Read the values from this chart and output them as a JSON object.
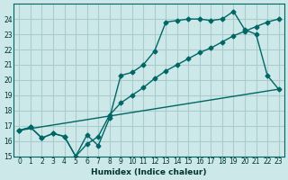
{
  "xlabel": "Humidex (Indice chaleur)",
  "ylabel": "",
  "bg_color": "#cce8e8",
  "grid_color": "#aacccc",
  "line_color": "#006666",
  "xlim": [
    -0.5,
    23.5
  ],
  "ylim": [
    15,
    25
  ],
  "yticks": [
    15,
    16,
    17,
    18,
    19,
    20,
    21,
    22,
    23,
    24
  ],
  "xticks": [
    0,
    1,
    2,
    3,
    4,
    5,
    6,
    7,
    8,
    9,
    10,
    11,
    12,
    13,
    14,
    15,
    16,
    17,
    18,
    19,
    20,
    21,
    22,
    23
  ],
  "line1_x": [
    0,
    1,
    2,
    3,
    4,
    5,
    6,
    7,
    8,
    9,
    10,
    11,
    12,
    13,
    14,
    15,
    16,
    17,
    18,
    19,
    20,
    21,
    22,
    23
  ],
  "line1_y": [
    16.7,
    16.9,
    16.2,
    16.5,
    16.3,
    15.0,
    16.4,
    15.7,
    17.5,
    20.3,
    20.5,
    21.0,
    21.9,
    23.8,
    23.9,
    24.0,
    24.0,
    23.9,
    24.0,
    24.5,
    23.3,
    23.0,
    20.3,
    19.4
  ],
  "line2_x": [
    0,
    1,
    2,
    3,
    4,
    5,
    6,
    7,
    8,
    9,
    10,
    11,
    12,
    13,
    14,
    15,
    16,
    17,
    18,
    19,
    20,
    21,
    22,
    23
  ],
  "line2_y": [
    16.7,
    16.9,
    16.2,
    16.5,
    16.3,
    15.0,
    15.8,
    16.3,
    17.7,
    18.5,
    19.0,
    19.5,
    20.1,
    20.6,
    21.0,
    21.4,
    21.8,
    22.1,
    22.5,
    22.9,
    23.2,
    23.5,
    23.8,
    24.0
  ],
  "line3_x": [
    0,
    23
  ],
  "line3_y": [
    16.7,
    19.4
  ]
}
